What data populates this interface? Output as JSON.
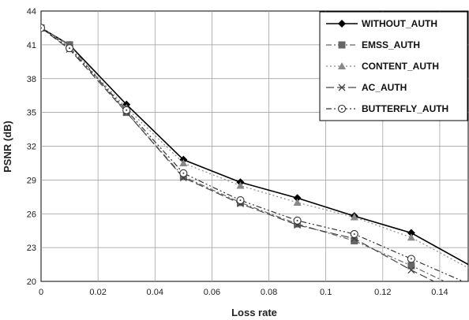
{
  "chart_data": {
    "type": "line",
    "title": "",
    "xlabel": "Loss rate",
    "ylabel": "PSNR (dB)",
    "xlim": [
      0,
      0.15
    ],
    "ylim": [
      20,
      44
    ],
    "x_ticks": [
      0,
      0.02,
      0.04,
      0.06,
      0.08,
      0.1,
      0.12,
      0.14
    ],
    "x_tick_labels": [
      "0",
      "0.02",
      "0.04",
      "0.06",
      "0.08",
      "0.1",
      "0.12",
      "0.14"
    ],
    "y_ticks": [
      20,
      23,
      26,
      29,
      32,
      35,
      38,
      41,
      44
    ],
    "y_tick_labels": [
      "20",
      "23",
      "26",
      "29",
      "32",
      "35",
      "38",
      "41",
      "44"
    ],
    "grid": true,
    "legend_position": "top-right",
    "x": [
      0,
      0.01,
      0.03,
      0.05,
      0.07,
      0.09,
      0.11,
      0.13,
      0.15
    ],
    "series": [
      {
        "name": "WITHOUT_AUTH",
        "marker": "diamond",
        "dash": "solid",
        "color": "#000000",
        "values": [
          42.5,
          41.0,
          35.7,
          30.8,
          28.8,
          27.4,
          25.8,
          24.3,
          21.5
        ]
      },
      {
        "name": "EMSS_AUTH",
        "marker": "square",
        "dash": "dashdot",
        "color": "#666666",
        "values": [
          42.5,
          41.0,
          35.0,
          29.3,
          27.0,
          25.1,
          23.6,
          21.4,
          19.0
        ]
      },
      {
        "name": "CONTENT_AUTH",
        "marker": "triangle",
        "dash": "dotted",
        "color": "#888888",
        "values": [
          42.5,
          40.8,
          35.4,
          30.5,
          28.5,
          27.0,
          25.7,
          23.9,
          21.2
        ]
      },
      {
        "name": "AC_AUTH",
        "marker": "x",
        "dash": "longdash",
        "color": "#444444",
        "values": [
          42.5,
          40.6,
          35.0,
          29.2,
          26.9,
          25.0,
          23.8,
          21.0,
          18.5
        ]
      },
      {
        "name": "BUTTERFLY_AUTH",
        "marker": "circle",
        "dash": "dashdotdot",
        "color": "#333333",
        "values": [
          42.5,
          40.7,
          35.2,
          29.6,
          27.2,
          25.4,
          24.2,
          22.0,
          19.8
        ]
      }
    ]
  }
}
